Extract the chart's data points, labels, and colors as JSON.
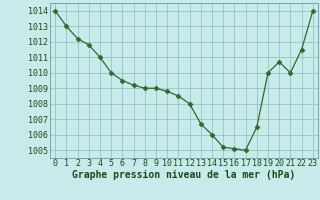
{
  "x": [
    0,
    1,
    2,
    3,
    4,
    5,
    6,
    7,
    8,
    9,
    10,
    11,
    12,
    13,
    14,
    15,
    16,
    17,
    18,
    19,
    20,
    21,
    22,
    23
  ],
  "y": [
    1014,
    1013,
    1012.2,
    1011.8,
    1011,
    1010,
    1009.5,
    1009.2,
    1009,
    1009,
    1008.8,
    1008.5,
    1008,
    1006.7,
    1006,
    1005.2,
    1005.1,
    1005,
    1006.5,
    1010,
    1010.7,
    1010,
    1011.5,
    1014
  ],
  "line_color": "#2d6a2d",
  "marker": "D",
  "marker_size": 2.5,
  "bg_color": "#c8eaea",
  "grid_color": "#9ec8c8",
  "xlabel": "Graphe pression niveau de la mer (hPa)",
  "xlabel_color": "#1a4a1a",
  "tick_color": "#1a4a1a",
  "ylim": [
    1004.5,
    1014.5
  ],
  "yticks": [
    1005,
    1006,
    1007,
    1008,
    1009,
    1010,
    1011,
    1012,
    1013,
    1014
  ],
  "xticks": [
    0,
    1,
    2,
    3,
    4,
    5,
    6,
    7,
    8,
    9,
    10,
    11,
    12,
    13,
    14,
    15,
    16,
    17,
    18,
    19,
    20,
    21,
    22,
    23
  ],
  "xlabel_fontsize": 7.0,
  "tick_fontsize": 6.0,
  "xlabel_bold": true,
  "figsize": [
    3.2,
    2.0
  ],
  "dpi": 100
}
